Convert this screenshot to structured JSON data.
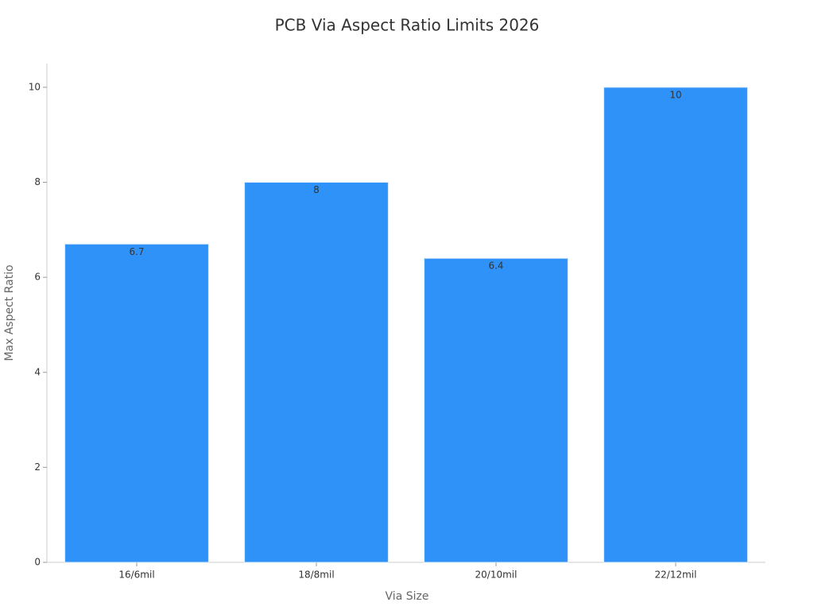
{
  "chart_data": {
    "type": "bar",
    "title": "PCB Via Aspect Ratio Limits 2026",
    "x_label": "Via Size",
    "y_label": "Max Aspect Ratio",
    "categories": [
      "16/6mil",
      "18/8mil",
      "20/10mil",
      "22/12mil"
    ],
    "values": [
      6.7,
      8,
      6.4,
      10
    ],
    "color": "#2f92f8",
    "ylim": [
      0,
      10.5
    ],
    "yticks": [
      0,
      2,
      4,
      6,
      8,
      10
    ],
    "grid": false
  }
}
